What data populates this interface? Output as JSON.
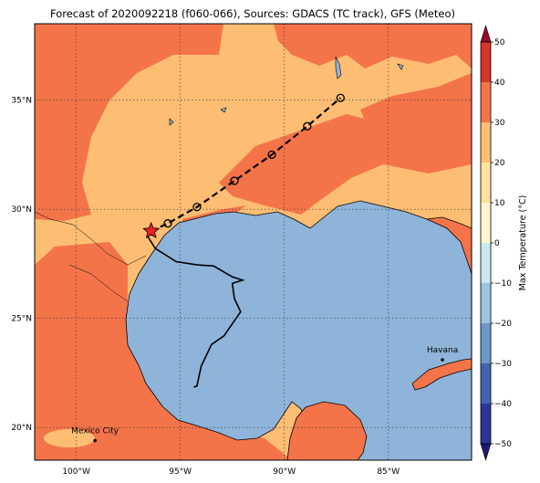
{
  "title": "Forecast of 2020092218 (f060-066), Sources: GDACS (TC track), GFS (Meteo)",
  "map": {
    "lon_range": [
      -102,
      -81
    ],
    "lat_range": [
      18.5,
      38.5
    ],
    "lon_ticks": [
      {
        "value": -100,
        "label": "100°W"
      },
      {
        "value": -95,
        "label": "95°W"
      },
      {
        "value": -90,
        "label": "90°W"
      },
      {
        "value": -85,
        "label": "85°W"
      }
    ],
    "lat_ticks": [
      {
        "value": 20,
        "label": "20°N"
      },
      {
        "value": 25,
        "label": "25°N"
      },
      {
        "value": 30,
        "label": "30°N"
      },
      {
        "value": 35,
        "label": "35°N"
      }
    ],
    "grid": "dotted",
    "colors": {
      "ocean": "#8fb4d9",
      "temp_20_30": "#fdbe74",
      "temp_30_40": "#f4744a",
      "coast": "#000000",
      "track": "#000000",
      "current_position_marker": "#e8202a"
    }
  },
  "track": {
    "past_path": [
      [
        -96.6,
        28.8
      ],
      [
        -96.2,
        28.2
      ],
      [
        -95.2,
        27.6
      ],
      [
        -94.2,
        27.45
      ],
      [
        -93.4,
        27.4
      ],
      [
        -92.5,
        26.9
      ],
      [
        -92.0,
        26.75
      ],
      [
        -92.5,
        26.6
      ],
      [
        -92.4,
        25.9
      ],
      [
        -92.1,
        25.3
      ],
      [
        -92.9,
        24.2
      ],
      [
        -93.5,
        23.8
      ],
      [
        -94.0,
        22.8
      ],
      [
        -94.2,
        21.9
      ],
      [
        -94.35,
        21.85
      ]
    ],
    "current_position": [
      -96.4,
      29.0
    ],
    "forecast_points": [
      [
        -95.6,
        29.35
      ],
      [
        -94.2,
        30.1
      ],
      [
        -92.4,
        31.3
      ],
      [
        -90.6,
        32.5
      ],
      [
        -88.9,
        33.8
      ],
      [
        -87.3,
        35.1
      ]
    ]
  },
  "cities": [
    {
      "name": "Mexico City",
      "lon": -99.1,
      "lat": 19.4
    },
    {
      "name": "Havana",
      "lon": -82.4,
      "lat": 23.1
    }
  ],
  "colorbar": {
    "label": "Max Temperature (°C)",
    "range": [
      -50,
      50
    ],
    "ticks": [
      50,
      40,
      30,
      20,
      10,
      0,
      -10,
      -20,
      -30,
      -40,
      -50
    ],
    "bands": [
      {
        "from": -50,
        "to": -40,
        "color": "#2b3696"
      },
      {
        "from": -40,
        "to": -30,
        "color": "#4264b0"
      },
      {
        "from": -30,
        "to": -20,
        "color": "#6a98c8"
      },
      {
        "from": -20,
        "to": -10,
        "color": "#9cc5e0"
      },
      {
        "from": -10,
        "to": 0,
        "color": "#cde8f0"
      },
      {
        "from": 0,
        "to": 10,
        "color": "#fff6d0"
      },
      {
        "from": 10,
        "to": 20,
        "color": "#fee3a0"
      },
      {
        "from": 20,
        "to": 30,
        "color": "#fdbe74"
      },
      {
        "from": 30,
        "to": 40,
        "color": "#f4744a"
      },
      {
        "from": 40,
        "to": 50,
        "color": "#d4362a"
      }
    ],
    "extend_low_color": "#1a1a7a",
    "extend_high_color": "#9b0a28"
  }
}
